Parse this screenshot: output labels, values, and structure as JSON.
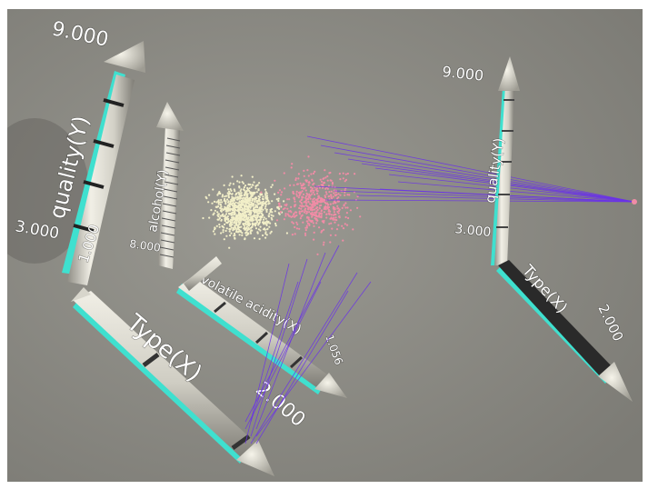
{
  "scene": {
    "colors": {
      "background": "#8e8d86",
      "axis_body": "#d8d6cc",
      "axis_highlight": "#3fe0cf",
      "link_line": "#6a32e8",
      "point_a": "#f2efc8",
      "point_b": "#f08ca6"
    },
    "left_plot": {
      "quality_axis": {
        "label": "quality(Y)",
        "max": "9.000",
        "min": "3.000"
      },
      "quality_axis_side_tick": "1.000",
      "alcohol_axis": {
        "label": "alcohol(Y)",
        "min": "8.000"
      },
      "type_axis": {
        "label": "Type(X)",
        "max": "2.000"
      },
      "volatile_axis": {
        "label": "volatile acidity(X)",
        "max": "1.056"
      }
    },
    "right_plot": {
      "quality_axis": {
        "label": "quality(Y)",
        "max": "9.000",
        "min": "3.000"
      },
      "type_axis": {
        "label": "Type(X)",
        "max": "2.000"
      }
    }
  }
}
